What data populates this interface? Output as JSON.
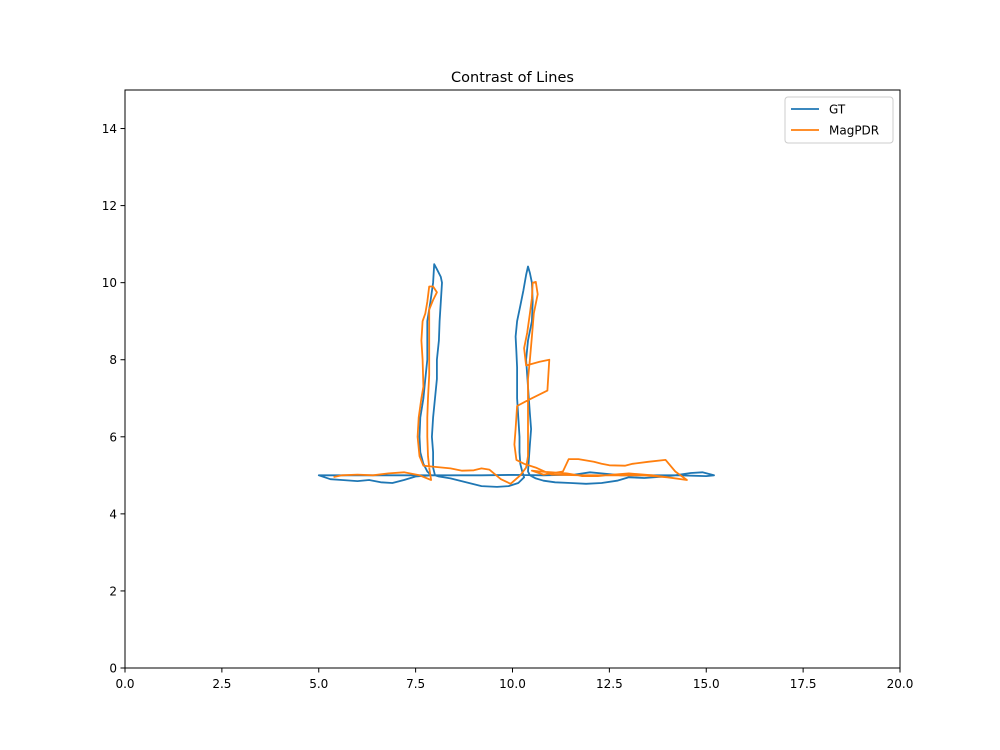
{
  "chart_data": {
    "type": "line",
    "title": "Contrast of Lines",
    "xlabel": "",
    "ylabel": "",
    "xlim": [
      0,
      20
    ],
    "ylim": [
      0,
      15
    ],
    "xticks": [
      0,
      2.5,
      5,
      7.5,
      10,
      12.5,
      15,
      17.5,
      20
    ],
    "xtick_labels": [
      "0.0",
      "2.5",
      "5.0",
      "7.5",
      "10.0",
      "12.5",
      "15.0",
      "17.5",
      "20.0"
    ],
    "yticks": [
      0,
      2,
      4,
      6,
      8,
      10,
      12,
      14
    ],
    "ytick_labels": [
      "0",
      "2",
      "4",
      "6",
      "8",
      "10",
      "12",
      "14"
    ],
    "grid": false,
    "legend": "top-right",
    "series": [
      {
        "name": "GT",
        "color": "#1f77b4",
        "points": [
          [
            15.2,
            5.0
          ],
          [
            14.9,
            5.08
          ],
          [
            14.6,
            5.06
          ],
          [
            14.2,
            5.0
          ],
          [
            13.8,
            4.96
          ],
          [
            13.4,
            4.93
          ],
          [
            13.0,
            4.95
          ],
          [
            12.7,
            4.86
          ],
          [
            12.3,
            4.8
          ],
          [
            11.9,
            4.78
          ],
          [
            11.5,
            4.8
          ],
          [
            11.1,
            4.82
          ],
          [
            10.8,
            4.86
          ],
          [
            10.6,
            4.92
          ],
          [
            10.45,
            5.0
          ],
          [
            10.4,
            5.1
          ],
          [
            10.42,
            5.4
          ],
          [
            10.45,
            5.8
          ],
          [
            10.48,
            6.2
          ],
          [
            10.45,
            6.6
          ],
          [
            10.42,
            7.0
          ],
          [
            10.38,
            7.6
          ],
          [
            10.35,
            8.0
          ],
          [
            10.4,
            8.5
          ],
          [
            10.5,
            9.0
          ],
          [
            10.52,
            9.5
          ],
          [
            10.5,
            10.0
          ],
          [
            10.45,
            10.25
          ],
          [
            10.4,
            10.42
          ],
          [
            10.35,
            10.2
          ],
          [
            10.28,
            9.8
          ],
          [
            10.2,
            9.4
          ],
          [
            10.12,
            9.0
          ],
          [
            10.08,
            8.6
          ],
          [
            10.1,
            8.2
          ],
          [
            10.12,
            7.8
          ],
          [
            10.12,
            7.4
          ],
          [
            10.12,
            7.0
          ],
          [
            10.15,
            6.5
          ],
          [
            10.18,
            6.0
          ],
          [
            10.18,
            5.6
          ],
          [
            10.2,
            5.3
          ],
          [
            10.25,
            5.1
          ],
          [
            10.3,
            4.95
          ],
          [
            10.15,
            4.8
          ],
          [
            9.9,
            4.72
          ],
          [
            9.6,
            4.7
          ],
          [
            9.2,
            4.72
          ],
          [
            8.8,
            4.82
          ],
          [
            8.4,
            4.92
          ],
          [
            8.1,
            4.97
          ],
          [
            8.0,
            5.0
          ],
          [
            7.95,
            5.2
          ],
          [
            7.95,
            5.6
          ],
          [
            7.92,
            6.0
          ],
          [
            7.95,
            6.5
          ],
          [
            8.0,
            7.0
          ],
          [
            8.05,
            7.5
          ],
          [
            8.05,
            8.0
          ],
          [
            8.1,
            8.5
          ],
          [
            8.12,
            9.0
          ],
          [
            8.15,
            9.5
          ],
          [
            8.18,
            10.0
          ],
          [
            8.15,
            10.15
          ],
          [
            8.05,
            10.35
          ],
          [
            7.98,
            10.48
          ],
          [
            7.95,
            10.0
          ],
          [
            7.88,
            9.5
          ],
          [
            7.8,
            9.0
          ],
          [
            7.8,
            8.5
          ],
          [
            7.8,
            8.0
          ],
          [
            7.75,
            7.5
          ],
          [
            7.7,
            7.0
          ],
          [
            7.62,
            6.5
          ],
          [
            7.6,
            6.0
          ],
          [
            7.62,
            5.6
          ],
          [
            7.7,
            5.3
          ],
          [
            7.8,
            5.1
          ],
          [
            7.9,
            5.0
          ],
          [
            7.5,
            4.97
          ],
          [
            7.2,
            4.88
          ],
          [
            6.9,
            4.8
          ],
          [
            6.6,
            4.82
          ],
          [
            6.3,
            4.88
          ],
          [
            6.0,
            4.85
          ],
          [
            5.6,
            4.88
          ],
          [
            5.3,
            4.9
          ],
          [
            5.0,
            5.0
          ],
          [
            5.6,
            5.0
          ],
          [
            6.3,
            5.0
          ],
          [
            7.0,
            5.0
          ],
          [
            7.8,
            5.0
          ],
          [
            8.5,
            5.0
          ],
          [
            9.2,
            5.0
          ],
          [
            10.0,
            5.01
          ],
          [
            10.8,
            5.0
          ],
          [
            11.6,
            5.02
          ],
          [
            12.0,
            5.08
          ],
          [
            12.3,
            5.05
          ],
          [
            12.8,
            5.0
          ],
          [
            13.6,
            5.0
          ],
          [
            14.3,
            5.0
          ],
          [
            15.0,
            4.98
          ],
          [
            15.2,
            5.0
          ]
        ]
      },
      {
        "name": "MagPDR",
        "color": "#ff7f0e",
        "points": [
          [
            14.5,
            4.88
          ],
          [
            14.0,
            4.95
          ],
          [
            13.6,
            5.0
          ],
          [
            13.0,
            5.05
          ],
          [
            12.6,
            5.02
          ],
          [
            12.2,
            4.98
          ],
          [
            11.8,
            4.98
          ],
          [
            11.4,
            5.05
          ],
          [
            11.0,
            5.08
          ],
          [
            10.7,
            5.1
          ],
          [
            10.5,
            5.12
          ],
          [
            10.8,
            5.02
          ],
          [
            11.3,
            5.1
          ],
          [
            11.45,
            5.42
          ],
          [
            11.7,
            5.42
          ],
          [
            12.1,
            5.35
          ],
          [
            12.3,
            5.3
          ],
          [
            12.5,
            5.26
          ],
          [
            12.9,
            5.25
          ],
          [
            13.1,
            5.3
          ],
          [
            13.5,
            5.35
          ],
          [
            13.95,
            5.4
          ],
          [
            14.2,
            5.1
          ],
          [
            14.5,
            4.88
          ],
          [
            14.0,
            4.95
          ],
          [
            13.4,
            5.0
          ],
          [
            12.6,
            5.0
          ],
          [
            11.8,
            5.0
          ],
          [
            11.0,
            5.02
          ],
          [
            10.6,
            5.2
          ],
          [
            10.3,
            5.3
          ],
          [
            10.1,
            5.4
          ],
          [
            10.05,
            5.8
          ],
          [
            10.08,
            6.2
          ],
          [
            10.12,
            6.8
          ],
          [
            10.4,
            6.95
          ],
          [
            10.9,
            7.2
          ],
          [
            10.95,
            8.0
          ],
          [
            10.7,
            7.95
          ],
          [
            10.35,
            7.85
          ],
          [
            10.3,
            8.3
          ],
          [
            10.38,
            8.7
          ],
          [
            10.45,
            9.2
          ],
          [
            10.5,
            9.6
          ],
          [
            10.52,
            10.0
          ],
          [
            10.6,
            10.02
          ],
          [
            10.65,
            9.7
          ],
          [
            10.55,
            9.2
          ],
          [
            10.5,
            8.6
          ],
          [
            10.45,
            8.0
          ],
          [
            10.4,
            7.5
          ],
          [
            10.4,
            7.0
          ],
          [
            10.4,
            6.5
          ],
          [
            10.4,
            6.0
          ],
          [
            10.4,
            5.5
          ],
          [
            10.35,
            5.2
          ],
          [
            10.2,
            5.0
          ],
          [
            9.95,
            4.78
          ],
          [
            9.7,
            4.9
          ],
          [
            9.4,
            5.15
          ],
          [
            9.2,
            5.18
          ],
          [
            9.0,
            5.13
          ],
          [
            8.7,
            5.12
          ],
          [
            8.4,
            5.18
          ],
          [
            8.0,
            5.22
          ],
          [
            7.7,
            5.25
          ],
          [
            7.6,
            5.5
          ],
          [
            7.55,
            6.0
          ],
          [
            7.58,
            6.5
          ],
          [
            7.65,
            7.0
          ],
          [
            7.7,
            7.3
          ],
          [
            7.68,
            8.0
          ],
          [
            7.65,
            8.5
          ],
          [
            7.68,
            9.0
          ],
          [
            7.75,
            9.2
          ],
          [
            7.8,
            9.5
          ],
          [
            7.85,
            9.9
          ],
          [
            7.95,
            9.9
          ],
          [
            8.05,
            9.75
          ],
          [
            7.95,
            9.55
          ],
          [
            7.85,
            9.3
          ],
          [
            7.85,
            8.8
          ],
          [
            7.85,
            8.2
          ],
          [
            7.85,
            7.6
          ],
          [
            7.82,
            7.0
          ],
          [
            7.8,
            6.5
          ],
          [
            7.8,
            6.0
          ],
          [
            7.82,
            5.5
          ],
          [
            7.85,
            5.2
          ],
          [
            7.9,
            4.88
          ],
          [
            7.6,
            5.0
          ],
          [
            7.2,
            5.08
          ],
          [
            6.8,
            5.05
          ],
          [
            6.4,
            5.0
          ],
          [
            6.0,
            5.02
          ],
          [
            5.6,
            5.0
          ],
          [
            5.4,
            4.96
          ]
        ]
      }
    ]
  }
}
